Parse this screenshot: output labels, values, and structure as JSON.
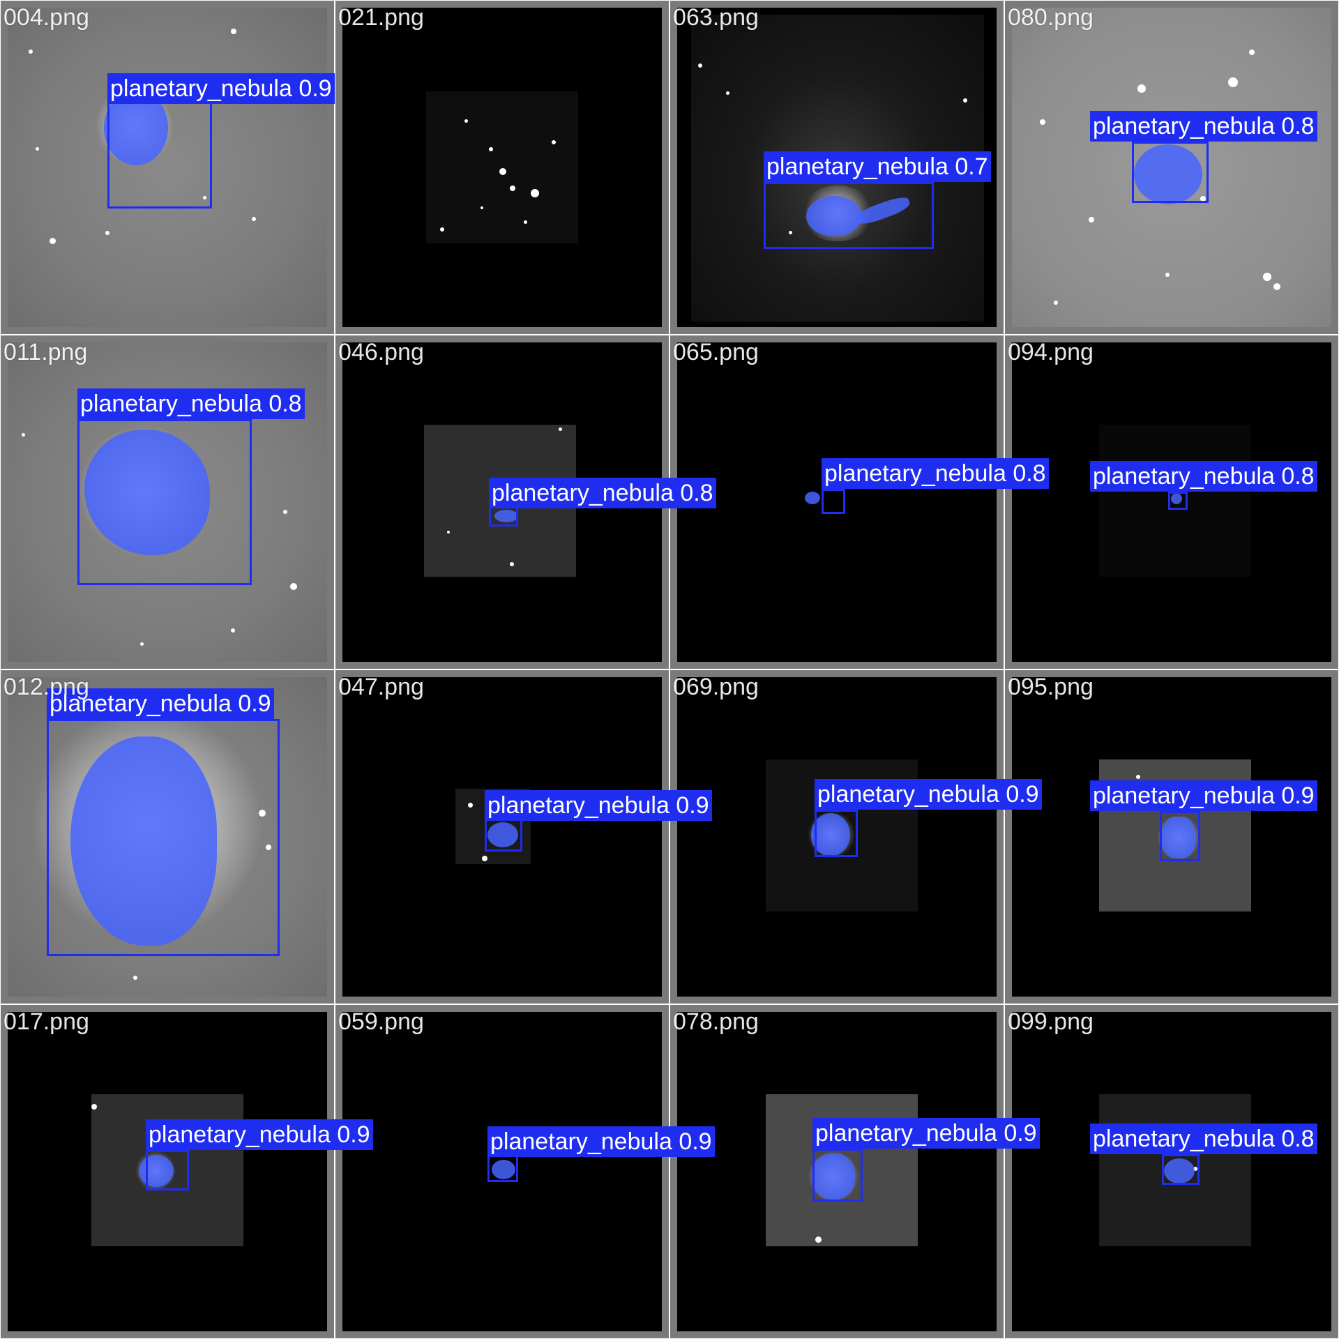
{
  "tiles": [
    {
      "filename": "004.png",
      "detections": [
        {
          "label": "planetary_nebula 0.9"
        }
      ]
    },
    {
      "filename": "021.png",
      "detections": []
    },
    {
      "filename": "063.png",
      "detections": [
        {
          "label": "planetary_nebula 0.7"
        }
      ]
    },
    {
      "filename": "080.png",
      "detections": [
        {
          "label": "planetary_nebula 0.8"
        }
      ]
    },
    {
      "filename": "011.png",
      "detections": [
        {
          "label": "planetary_nebula 0.8"
        }
      ]
    },
    {
      "filename": "046.png",
      "detections": [
        {
          "label": "planetary_nebula 0.8"
        }
      ]
    },
    {
      "filename": "065.png",
      "detections": [
        {
          "label": "planetary_nebula 0.8"
        }
      ]
    },
    {
      "filename": "094.png",
      "detections": [
        {
          "label": "planetary_nebula 0.8"
        }
      ]
    },
    {
      "filename": "012.png",
      "detections": [
        {
          "label": "planetary_nebula 0.9"
        }
      ]
    },
    {
      "filename": "047.png",
      "detections": [
        {
          "label": "planetary_nebula 0.9"
        }
      ]
    },
    {
      "filename": "069.png",
      "detections": [
        {
          "label": "planetary_nebula 0.9"
        }
      ]
    },
    {
      "filename": "095.png",
      "detections": [
        {
          "label": "planetary_nebula 0.9"
        }
      ]
    },
    {
      "filename": "017.png",
      "detections": [
        {
          "label": "planetary_nebula 0.9"
        }
      ]
    },
    {
      "filename": "059.png",
      "detections": [
        {
          "label": "planetary_nebula 0.9"
        }
      ]
    },
    {
      "filename": "078.png",
      "detections": [
        {
          "label": "planetary_nebula 0.9"
        }
      ]
    },
    {
      "filename": "099.png",
      "detections": [
        {
          "label": "planetary_nebula 0.8"
        }
      ]
    }
  ],
  "colors": {
    "box": "#1f2df0",
    "mask": "#4664ff",
    "label_text": "#ffffff",
    "tile_border": "#7a7a7a"
  }
}
